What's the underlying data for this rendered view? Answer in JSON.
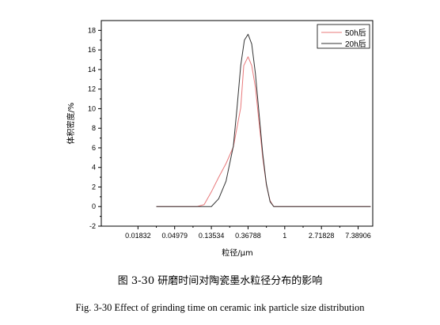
{
  "chart_data": {
    "type": "line",
    "title": "",
    "xlabel": "粒径/μm",
    "ylabel": "体积密度/%",
    "x_scale": "log",
    "x_ticks": [
      "0.01832",
      "0.04979",
      "0.13534",
      "0.36788",
      "1",
      "2.71828",
      "7.38906"
    ],
    "x_tick_values": [
      0.01832,
      0.04979,
      0.13534,
      0.36788,
      1,
      2.71828,
      7.38906
    ],
    "xlim": [
      0.00674,
      11.0
    ],
    "ylim": [
      -2,
      19
    ],
    "y_ticks": [
      -2,
      0,
      2,
      4,
      6,
      8,
      10,
      12,
      14,
      16,
      18
    ],
    "legend_position": "top-right",
    "series": [
      {
        "name": "50h后",
        "color": "#e8787a",
        "points": [
          [
            0.0302,
            0
          ],
          [
            0.0915,
            0
          ],
          [
            0.1111,
            0.2
          ],
          [
            0.1353,
            1.5
          ],
          [
            0.1653,
            3.0
          ],
          [
            0.2019,
            4.4
          ],
          [
            0.2466,
            6.1
          ],
          [
            0.3012,
            10.1
          ],
          [
            0.3273,
            14.4
          ],
          [
            0.3679,
            15.3
          ],
          [
            0.4066,
            14.4
          ],
          [
            0.4493,
            12.2
          ],
          [
            0.4966,
            8.6
          ],
          [
            0.5488,
            5.0
          ],
          [
            0.6065,
            2.2
          ],
          [
            0.6703,
            0.6
          ],
          [
            0.7408,
            0
          ],
          [
            1.0,
            0
          ],
          [
            10.4,
            0
          ]
        ]
      },
      {
        "name": "20h后",
        "color": "#333333",
        "points": [
          [
            0.0302,
            0
          ],
          [
            0.1227,
            0
          ],
          [
            0.1353,
            0.0
          ],
          [
            0.1653,
            0.8
          ],
          [
            0.2019,
            2.6
          ],
          [
            0.2466,
            6.2
          ],
          [
            0.2725,
            10.1
          ],
          [
            0.3012,
            14.4
          ],
          [
            0.3329,
            17.0
          ],
          [
            0.3679,
            17.6
          ],
          [
            0.4066,
            16.6
          ],
          [
            0.4493,
            13.6
          ],
          [
            0.4966,
            9.5
          ],
          [
            0.5488,
            5.4
          ],
          [
            0.6065,
            2.3
          ],
          [
            0.6703,
            0.5
          ],
          [
            0.7408,
            0
          ],
          [
            1.0,
            0
          ],
          [
            10.4,
            0
          ]
        ]
      }
    ]
  },
  "captions": {
    "chinese": "图 3-30 研磨时间对陶瓷墨水粒径分布的影响",
    "english": "Fig. 3-30 Effect of grinding time on ceramic ink particle size distribution"
  }
}
